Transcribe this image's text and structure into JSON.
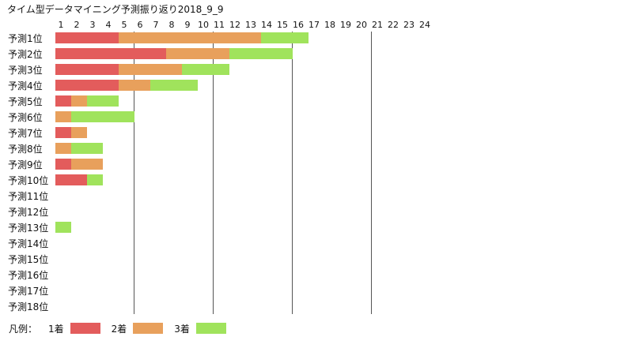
{
  "chart_data": {
    "type": "bar",
    "orientation": "horizontal",
    "stacked": true,
    "title": "タイム型データマイニング予測振り返り2018_9_9",
    "x_ticks": [
      "1",
      "2",
      "3",
      "4",
      "5",
      "6",
      "7",
      "8",
      "9",
      "10",
      "11",
      "12",
      "13",
      "14",
      "15",
      "16",
      "17",
      "18",
      "19",
      "20",
      "21",
      "22",
      "23",
      "24"
    ],
    "xlim": [
      0,
      24
    ],
    "grid": true,
    "legend_position": "bottom-left",
    "legend_title": "凡例：",
    "categories": [
      "予測1位",
      "予測2位",
      "予測3位",
      "予測4位",
      "予測5位",
      "予測6位",
      "予測7位",
      "予測8位",
      "予測9位",
      "予測10位",
      "予測11位",
      "予測12位",
      "予測13位",
      "予測14位",
      "予測15位",
      "予測16位",
      "予測17位",
      "予測18位"
    ],
    "series": [
      {
        "name": "1着",
        "color": "#e35c5c",
        "values": [
          4,
          7,
          4,
          4,
          1,
          0,
          1,
          0,
          1,
          2,
          0,
          0,
          0,
          0,
          0,
          0,
          0,
          0
        ]
      },
      {
        "name": "2着",
        "color": "#e8a05c",
        "values": [
          9,
          4,
          4,
          2,
          1,
          1,
          1,
          1,
          2,
          0,
          0,
          0,
          0,
          0,
          0,
          0,
          0,
          0
        ]
      },
      {
        "name": "3着",
        "color": "#a0e35c",
        "values": [
          3,
          4,
          3,
          3,
          2,
          4,
          0,
          2,
          0,
          1,
          0,
          0,
          1,
          0,
          0,
          0,
          0,
          0
        ]
      }
    ]
  }
}
